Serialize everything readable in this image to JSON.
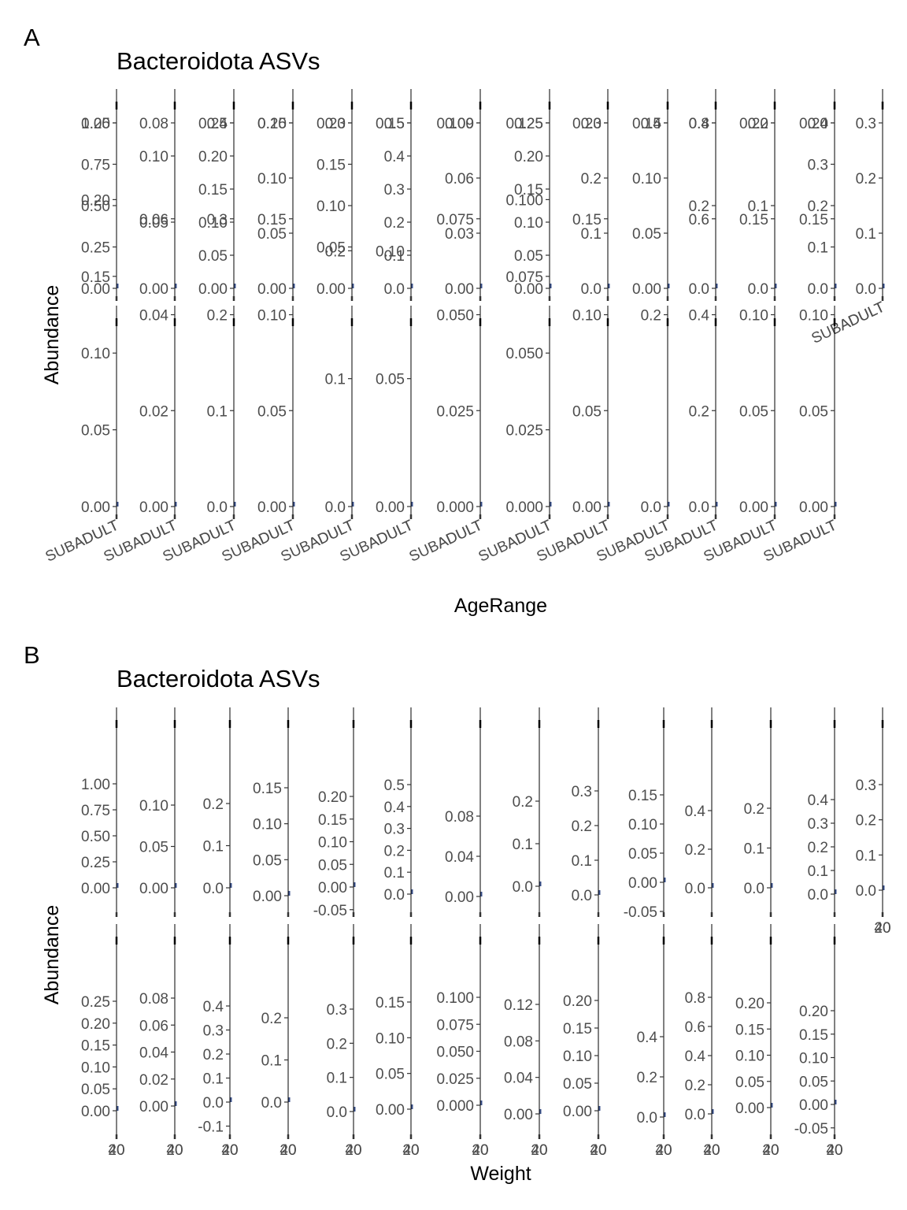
{
  "chart_data": [
    {
      "panel_tag": "A",
      "type": "scatter",
      "title": "Bacteroidota ASVs",
      "xlabel": "AgeRange",
      "ylabel": "Abundance",
      "x_tick_labels": [
        "SUBADULT",
        "ADULT"
      ],
      "rows": [
        [
          {
            "ylim": [
              0,
              1.0
            ],
            "ticks": [
              "0.00",
              "0.25",
              "0.50",
              "0.75",
              "1.00"
            ]
          },
          {
            "ylim": [
              0,
              0.125
            ],
            "ticks": [
              "0.00",
              "0.05",
              "0.10"
            ]
          },
          {
            "ylim": [
              0,
              0.25
            ],
            "ticks": [
              "0.00",
              "0.05",
              "0.10",
              "0.15",
              "0.20",
              "0.25"
            ]
          },
          {
            "ylim": [
              0,
              0.15
            ],
            "ticks": [
              "0.00",
              "0.05",
              "0.10",
              "0.15"
            ]
          },
          {
            "ylim": [
              0,
              0.2
            ],
            "ticks": [
              "0.00",
              "0.05",
              "0.10",
              "0.15",
              "0.20"
            ]
          },
          {
            "ylim": [
              0,
              0.5
            ],
            "ticks": [
              "0.0",
              "0.1",
              "0.2",
              "0.3",
              "0.4",
              "0.5"
            ]
          },
          {
            "ylim": [
              0,
              0.09
            ],
            "ticks": [
              "0.00",
              "0.03",
              "0.06",
              "0.09"
            ]
          },
          {
            "ylim": [
              0,
              0.25
            ],
            "ticks": [
              "0.00",
              "0.05",
              "0.10",
              "0.15",
              "0.20",
              "0.25"
            ]
          },
          {
            "ylim": [
              0,
              0.3
            ],
            "ticks": [
              "0.0",
              "0.1",
              "0.2",
              "0.3"
            ]
          },
          {
            "ylim": [
              0,
              0.15
            ],
            "ticks": [
              "0.00",
              "0.05",
              "0.10",
              "0.15"
            ]
          },
          {
            "ylim": [
              0,
              0.4
            ],
            "ticks": [
              "0.0",
              "0.2",
              "0.4"
            ]
          },
          {
            "ylim": [
              0,
              0.2
            ],
            "ticks": [
              "0.0",
              "0.1",
              "0.2"
            ]
          },
          {
            "ylim": [
              0,
              0.4
            ],
            "ticks": [
              "0.0",
              "0.1",
              "0.2",
              "0.3",
              "0.4"
            ]
          },
          {
            "ylim": [
              0,
              0.3
            ],
            "ticks": [
              "0.0",
              "0.1",
              "0.2",
              "0.3"
            ]
          }
        ],
        [
          {
            "ylim": [
              0,
              0.25
            ],
            "ticks": [
              "0.00",
              "0.05",
              "0.10",
              "0.15",
              "0.20",
              "0.25"
            ]
          },
          {
            "ylim": [
              0,
              0.08
            ],
            "ticks": [
              "0.00",
              "0.02",
              "0.04",
              "0.06",
              "0.08"
            ]
          },
          {
            "ylim": [
              0,
              0.4
            ],
            "ticks": [
              "0.0",
              "0.1",
              "0.2",
              "0.3",
              "0.4"
            ]
          },
          {
            "ylim": [
              0,
              0.2
            ],
            "ticks": [
              "0.00",
              "0.05",
              "0.10",
              "0.15",
              "0.20"
            ]
          },
          {
            "ylim": [
              0,
              0.3
            ],
            "ticks": [
              "0.0",
              "0.1",
              "0.2",
              "0.3"
            ]
          },
          {
            "ylim": [
              0,
              0.15
            ],
            "ticks": [
              "0.00",
              "0.05",
              "0.10",
              "0.15"
            ]
          },
          {
            "ylim": [
              0,
              0.1
            ],
            "ticks": [
              "0.000",
              "0.025",
              "0.050",
              "0.075",
              "0.100"
            ]
          },
          {
            "ylim": [
              0,
              0.125
            ],
            "ticks": [
              "0.000",
              "0.025",
              "0.050",
              "0.075",
              "0.100",
              "0.125"
            ]
          },
          {
            "ylim": [
              0,
              0.2
            ],
            "ticks": [
              "0.00",
              "0.05",
              "0.10",
              "0.15",
              "0.20"
            ]
          },
          {
            "ylim": [
              0,
              0.4
            ],
            "ticks": [
              "0.0",
              "0.2",
              "0.4"
            ]
          },
          {
            "ylim": [
              0,
              0.8
            ],
            "ticks": [
              "0.0",
              "0.2",
              "0.4",
              "0.6",
              "0.8"
            ]
          },
          {
            "ylim": [
              0,
              0.2
            ],
            "ticks": [
              "0.00",
              "0.05",
              "0.10",
              "0.15",
              "0.20"
            ]
          },
          {
            "ylim": [
              0,
              0.2
            ],
            "ticks": [
              "0.00",
              "0.05",
              "0.10",
              "0.15",
              "0.20"
            ]
          }
        ]
      ]
    },
    {
      "panel_tag": "B",
      "type": "scatter",
      "title": "Bacteroidota ASVs",
      "xlabel": "Weight",
      "ylabel": "Abundance",
      "x_tick_labels": [
        "20",
        "40"
      ],
      "rows": [
        [
          {
            "ylim": [
              0,
              1.0
            ],
            "ticks": [
              "0.00",
              "0.25",
              "0.50",
              "0.75",
              "1.00"
            ]
          },
          {
            "ylim": [
              0,
              0.1
            ],
            "ticks": [
              "0.00",
              "0.05",
              "0.10"
            ]
          },
          {
            "ylim": [
              0,
              0.2
            ],
            "ticks": [
              "0.0",
              "0.1",
              "0.2"
            ]
          },
          {
            "ylim": [
              0,
              0.15
            ],
            "ticks": [
              "0.00",
              "0.05",
              "0.10",
              "0.15"
            ]
          },
          {
            "ylim": [
              -0.05,
              0.2
            ],
            "ticks": [
              "-0.05",
              "0.00",
              "0.05",
              "0.10",
              "0.15",
              "0.20"
            ]
          },
          {
            "ylim": [
              0,
              0.5
            ],
            "ticks": [
              "0.0",
              "0.1",
              "0.2",
              "0.3",
              "0.4",
              "0.5"
            ]
          },
          {
            "ylim": [
              0,
              0.08
            ],
            "ticks": [
              "0.00",
              "0.04",
              "0.08"
            ]
          },
          {
            "ylim": [
              0,
              0.2
            ],
            "ticks": [
              "0.0",
              "0.1",
              "0.2"
            ]
          },
          {
            "ylim": [
              0,
              0.3
            ],
            "ticks": [
              "0.0",
              "0.1",
              "0.2",
              "0.3"
            ]
          },
          {
            "ylim": [
              -0.05,
              0.15
            ],
            "ticks": [
              "-0.05",
              "0.00",
              "0.05",
              "0.10",
              "0.15"
            ]
          },
          {
            "ylim": [
              0,
              0.4
            ],
            "ticks": [
              "0.0",
              "0.2",
              "0.4"
            ]
          },
          {
            "ylim": [
              0,
              0.2
            ],
            "ticks": [
              "0.0",
              "0.1",
              "0.2"
            ]
          },
          {
            "ylim": [
              0,
              0.4
            ],
            "ticks": [
              "0.0",
              "0.1",
              "0.2",
              "0.3",
              "0.4"
            ]
          },
          {
            "ylim": [
              0,
              0.3
            ],
            "ticks": [
              "0.0",
              "0.1",
              "0.2",
              "0.3"
            ]
          }
        ],
        [
          {
            "ylim": [
              0,
              0.25
            ],
            "ticks": [
              "0.00",
              "0.05",
              "0.10",
              "0.15",
              "0.20",
              "0.25"
            ]
          },
          {
            "ylim": [
              0,
              0.08
            ],
            "ticks": [
              "0.00",
              "0.02",
              "0.04",
              "0.06",
              "0.08"
            ]
          },
          {
            "ylim": [
              -0.1,
              0.4
            ],
            "ticks": [
              "-0.1",
              "0.0",
              "0.1",
              "0.2",
              "0.3",
              "0.4"
            ]
          },
          {
            "ylim": [
              0,
              0.2
            ],
            "ticks": [
              "0.0",
              "0.1",
              "0.2"
            ]
          },
          {
            "ylim": [
              0,
              0.3
            ],
            "ticks": [
              "0.0",
              "0.1",
              "0.2",
              "0.3"
            ]
          },
          {
            "ylim": [
              0,
              0.15
            ],
            "ticks": [
              "0.00",
              "0.05",
              "0.10",
              "0.15"
            ]
          },
          {
            "ylim": [
              0,
              0.1
            ],
            "ticks": [
              "0.000",
              "0.025",
              "0.050",
              "0.075",
              "0.100"
            ]
          },
          {
            "ylim": [
              0,
              0.12
            ],
            "ticks": [
              "0.00",
              "0.04",
              "0.08",
              "0.12"
            ]
          },
          {
            "ylim": [
              0,
              0.2
            ],
            "ticks": [
              "0.00",
              "0.05",
              "0.10",
              "0.15",
              "0.20"
            ]
          },
          {
            "ylim": [
              0,
              0.4
            ],
            "ticks": [
              "0.0",
              "0.2",
              "0.4"
            ]
          },
          {
            "ylim": [
              0,
              0.8
            ],
            "ticks": [
              "0.0",
              "0.2",
              "0.4",
              "0.6",
              "0.8"
            ]
          },
          {
            "ylim": [
              0,
              0.2
            ],
            "ticks": [
              "0.00",
              "0.05",
              "0.10",
              "0.15",
              "0.20"
            ]
          },
          {
            "ylim": [
              -0.05,
              0.2
            ],
            "ticks": [
              "-0.05",
              "0.00",
              "0.05",
              "0.10",
              "0.15",
              "0.20"
            ]
          }
        ]
      ]
    }
  ]
}
